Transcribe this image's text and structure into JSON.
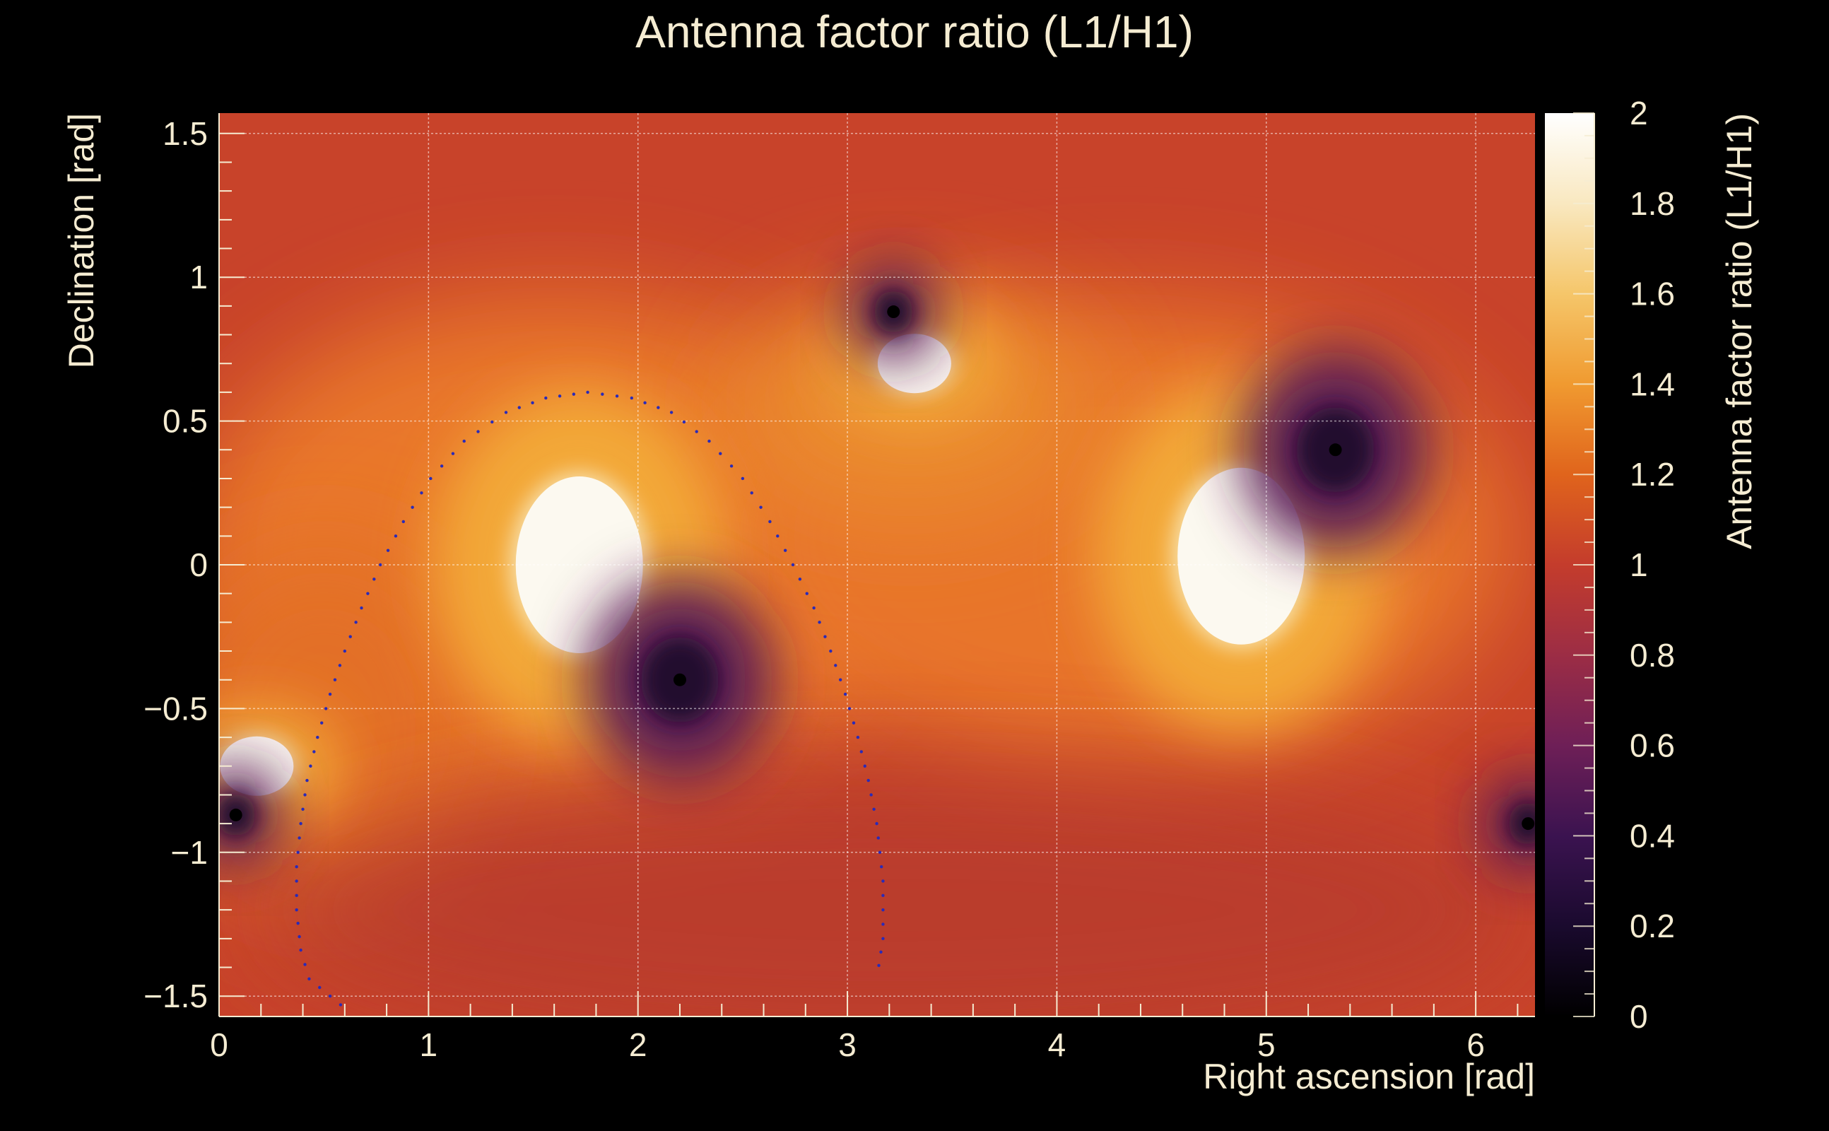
{
  "chart_data": {
    "type": "heatmap",
    "title": "Antenna factor ratio (L1/H1)",
    "xlabel": "Right ascension [rad]",
    "ylabel": "Declination [rad]",
    "zlabel": "Antenna factor ratio (L1/H1)",
    "xlim": [
      0,
      6.283
    ],
    "ylim": [
      -1.5708,
      1.5708
    ],
    "zlim": [
      0,
      2
    ],
    "x_ticks": [
      0,
      1,
      2,
      3,
      4,
      5,
      6
    ],
    "x_tick_labels": [
      "0",
      "1",
      "2",
      "3",
      "4",
      "5",
      "6"
    ],
    "y_ticks": [
      -1.5,
      -1,
      -0.5,
      0,
      0.5,
      1,
      1.5
    ],
    "y_tick_labels": [
      "−1.5",
      "−1",
      "−0.5",
      "0",
      "0.5",
      "1",
      "1.5"
    ],
    "z_ticks": [
      0,
      0.2,
      0.4,
      0.6,
      0.8,
      1,
      1.2,
      1.4,
      1.6,
      1.8,
      2
    ],
    "z_tick_labels": [
      "0",
      "0.2",
      "0.4",
      "0.6",
      "0.8",
      "1",
      "1.2",
      "1.4",
      "1.6",
      "1.8",
      "2"
    ],
    "grid": true,
    "colormap": [
      "#000000",
      "#1a0a2e",
      "#3b1350",
      "#6e1f57",
      "#9c2d45",
      "#c43c2c",
      "#e0641c",
      "#f09a30",
      "#f5c66a",
      "#f9e8c0",
      "#ffffff"
    ],
    "features": [
      {
        "kind": "maximum",
        "ra": 1.72,
        "dec": 0.0
      },
      {
        "kind": "maximum",
        "ra": 4.88,
        "dec": 0.03
      },
      {
        "kind": "maximum",
        "ra": 3.32,
        "dec": 0.7
      },
      {
        "kind": "maximum",
        "ra": 0.18,
        "dec": -0.7
      },
      {
        "kind": "minimum",
        "ra": 2.2,
        "dec": -0.4
      },
      {
        "kind": "minimum",
        "ra": 5.33,
        "dec": 0.4
      },
      {
        "kind": "minimum",
        "ra": 3.22,
        "dec": 0.88
      },
      {
        "kind": "minimum",
        "ra": 0.08,
        "dec": -0.87
      },
      {
        "kind": "minimum",
        "ra": 6.25,
        "dec": -0.9
      }
    ],
    "dotted_curve": {
      "color": "#2a2ab8",
      "x": [
        0.58,
        0.43,
        0.39,
        0.37,
        0.37,
        0.39,
        0.42,
        0.47,
        0.53,
        0.6,
        0.68,
        0.77,
        0.88,
        1.01,
        1.17,
        1.37,
        1.56,
        1.76,
        1.97,
        2.16,
        2.34,
        2.5,
        2.63,
        2.74,
        2.84,
        2.92,
        2.99,
        3.05,
        3.1,
        3.14,
        3.17,
        3.17,
        3.14
      ],
      "y": [
        -1.53,
        -1.44,
        -1.34,
        -1.2,
        -1.05,
        -0.9,
        -0.75,
        -0.6,
        -0.45,
        -0.3,
        -0.15,
        0.0,
        0.15,
        0.3,
        0.43,
        0.53,
        0.58,
        0.6,
        0.58,
        0.53,
        0.43,
        0.3,
        0.15,
        0.0,
        -0.15,
        -0.3,
        -0.45,
        -0.6,
        -0.75,
        -0.9,
        -1.1,
        -1.3,
        -1.44
      ]
    }
  }
}
